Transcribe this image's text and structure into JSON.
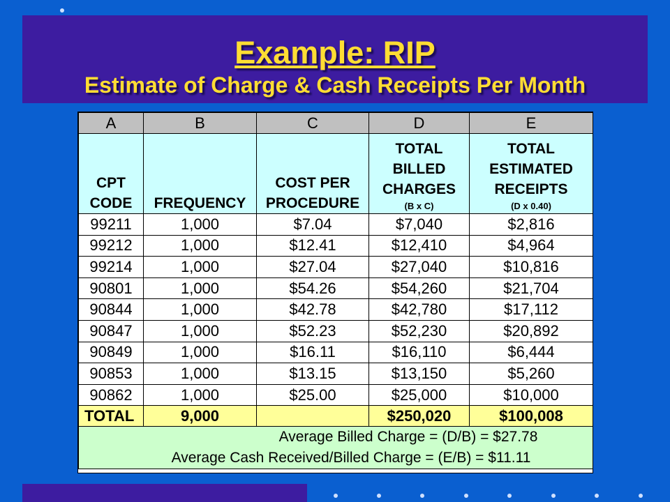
{
  "title": {
    "line1": "Example:  RIP",
    "line2": "Estimate of Charge & Cash Receipts Per Month"
  },
  "columns": {
    "letters": [
      "A",
      "B",
      "C",
      "D",
      "E"
    ],
    "headers": [
      {
        "lines": [
          "CPT",
          "CODE"
        ],
        "note": ""
      },
      {
        "lines": [
          "FREQUENCY"
        ],
        "note": ""
      },
      {
        "lines": [
          "COST PER",
          "PROCEDURE"
        ],
        "note": ""
      },
      {
        "lines": [
          "TOTAL",
          "BILLED",
          "CHARGES"
        ],
        "note": "(B x C)"
      },
      {
        "lines": [
          "TOTAL",
          "ESTIMATED",
          "RECEIPTS"
        ],
        "note": "(D x 0.40)"
      }
    ]
  },
  "rows": [
    [
      "99211",
      "1,000",
      "$7.04",
      "$7,040",
      "$2,816"
    ],
    [
      "99212",
      "1,000",
      "$12.41",
      "$12,410",
      "$4,964"
    ],
    [
      "99214",
      "1,000",
      "$27.04",
      "$27,040",
      "$10,816"
    ],
    [
      "90801",
      "1,000",
      "$54.26",
      "$54,260",
      "$21,704"
    ],
    [
      "90844",
      "1,000",
      "$42.78",
      "$42,780",
      "$17,112"
    ],
    [
      "90847",
      "1,000",
      "$52.23",
      "$52,230",
      "$20,892"
    ],
    [
      "90849",
      "1,000",
      "$16.11",
      "$16,110",
      "$6,444"
    ],
    [
      "90853",
      "1,000",
      "$13.15",
      "$13,150",
      "$5,260"
    ],
    [
      "90862",
      "1,000",
      "$25.00",
      "$25,000",
      "$10,000"
    ]
  ],
  "total": {
    "label": "TOTAL",
    "frequency": "9,000",
    "billed": "$250,020",
    "receipts": "$100,008"
  },
  "averages": {
    "billed_charge": "Average Billed Charge = (D/B) = $27.78",
    "cash_received": "Average Cash Received/Billed Charge = (E/B) = $11.11"
  },
  "colors": {
    "background": "#0a5fd0",
    "title_box": "#3d1ca0",
    "title_text": "#ffdd33",
    "header_fill": "#ccffff",
    "total_fill": "#ffff99",
    "average_fill": "#ccffcc"
  }
}
